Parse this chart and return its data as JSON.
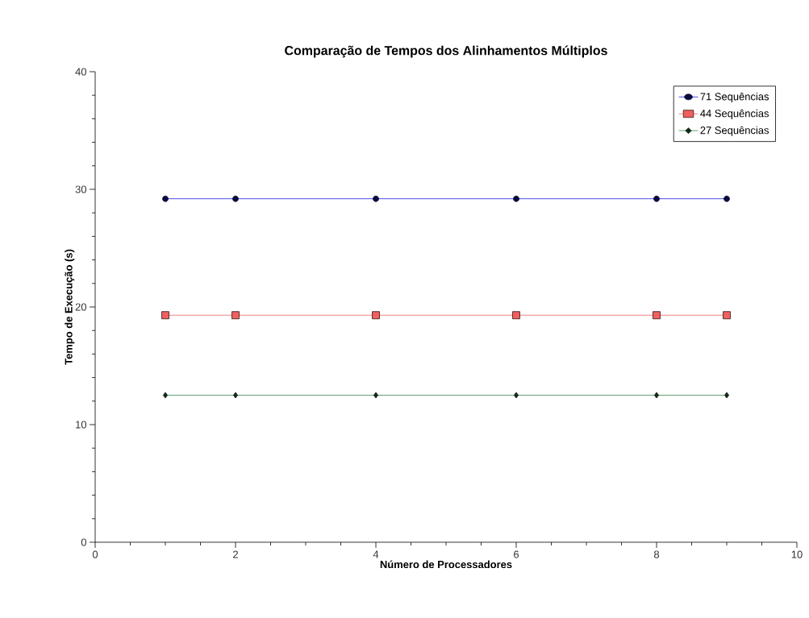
{
  "chart_data": {
    "type": "line",
    "title": "Comparação de Tempos dos Alinhamentos Múltiplos",
    "xlabel": "Número de Processadores",
    "ylabel": "Tempo de Execução (s)",
    "x": [
      1,
      2,
      4,
      6,
      8,
      9
    ],
    "series": [
      {
        "name": "71 Sequências",
        "color": "#2020e0",
        "marker": "circle",
        "values": [
          29.2,
          29.2,
          29.2,
          29.2,
          29.2,
          29.2
        ]
      },
      {
        "name": "44 Sequências",
        "color": "#f06060",
        "marker": "square",
        "values": [
          19.3,
          19.3,
          19.3,
          19.3,
          19.3,
          19.3
        ]
      },
      {
        "name": "27 Sequências",
        "color": "#3c8c50",
        "marker": "diamond",
        "values": [
          12.5,
          12.5,
          12.5,
          12.5,
          12.5,
          12.5
        ]
      }
    ],
    "xlim": [
      0,
      10
    ],
    "ylim": [
      0,
      40
    ],
    "xticks": [
      0,
      2,
      4,
      6,
      8,
      10
    ],
    "yticks": [
      0,
      10,
      20,
      30,
      40
    ],
    "grid": false,
    "legend": "top right",
    "line_style": "solid"
  }
}
